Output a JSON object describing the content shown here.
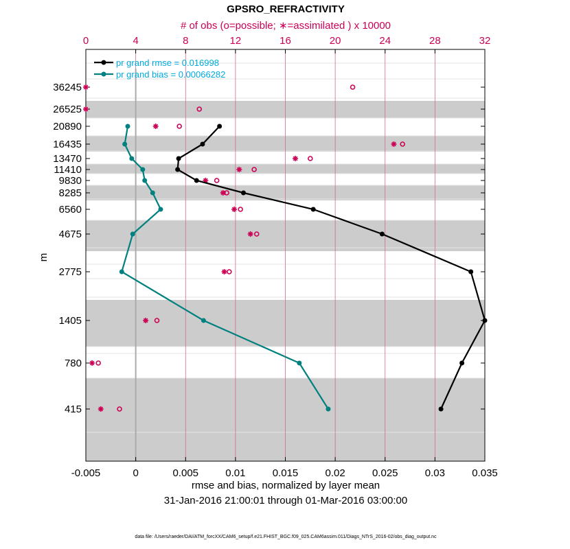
{
  "chart_data": {
    "type": "line",
    "title": "GPSRO_REFRACTIVITY",
    "top_axis_label": "# of obs (o=possible; ∗=assimilated ) x 10000",
    "top_ticks": [
      "0",
      "4",
      "8",
      "12",
      "16",
      "20",
      "24",
      "28",
      "32"
    ],
    "top_range": [
      0,
      32
    ],
    "xlabel": "rmse and bias, normalized by layer mean",
    "date_range": "31-Jan-2016 21:00:01 through 01-Mar-2016 03:00:00",
    "ylabel": "m",
    "xlim": [
      -0.005,
      0.035
    ],
    "x_ticks": [
      "-0.005",
      "0",
      "0.005",
      "0.01",
      "0.015",
      "0.02",
      "0.025",
      "0.03",
      "0.035"
    ],
    "y_levels": [
      "36245",
      "26525",
      "20890",
      "16435",
      "13470",
      "11410",
      "9830",
      "8285",
      "6560",
      "4675",
      "2775",
      "1405",
      "780",
      "415"
    ],
    "shaded_bands": [
      [
        1,
        1
      ],
      [
        3,
        3
      ],
      [
        5,
        5
      ],
      [
        7,
        7
      ],
      [
        9,
        9
      ],
      [
        11,
        11
      ],
      [
        13,
        13
      ]
    ],
    "legend": {
      "rmse_label": "pr grand rmse = 0.016998",
      "bias_label": "pr grand bias = 0.00066282"
    },
    "series": [
      {
        "name": "rmse",
        "color": "#000000",
        "level_index": [
          2,
          3,
          4,
          5,
          6,
          7,
          8,
          9,
          10,
          11,
          12,
          13
        ],
        "values": [
          0.0084,
          0.0067,
          0.0043,
          0.0042,
          0.0061,
          0.0108,
          0.0178,
          0.0247,
          0.0336,
          0.035,
          0.0327,
          0.0306
        ]
      },
      {
        "name": "bias",
        "color": "#00807f",
        "level_index": [
          2,
          3,
          4,
          5,
          6,
          7,
          8,
          9,
          10,
          11,
          12,
          13
        ],
        "values": [
          -0.0008,
          -0.0011,
          -0.0004,
          0.0007,
          0.0009,
          0.0017,
          0.0025,
          -0.0003,
          -0.0014,
          0.0068,
          0.0164,
          0.0193
        ]
      }
    ],
    "obs_possible": [
      {
        "level_index": 0,
        "count": 21.4
      },
      {
        "level_index": 1,
        "count": 9.1
      },
      {
        "level_index": 2,
        "count": 7.5
      },
      {
        "level_index": 3,
        "count": 25.4
      },
      {
        "level_index": 4,
        "count": 18.0
      },
      {
        "level_index": 5,
        "count": 13.5
      },
      {
        "level_index": 6,
        "count": 10.5
      },
      {
        "level_index": 7,
        "count": 11.3
      },
      {
        "level_index": 8,
        "count": 12.4
      },
      {
        "level_index": 9,
        "count": 13.7
      },
      {
        "level_index": 10,
        "count": 11.5
      },
      {
        "level_index": 11,
        "count": 5.7
      },
      {
        "level_index": 12,
        "count": 1.0
      },
      {
        "level_index": 13,
        "count": 2.7
      }
    ],
    "obs_assimilated": [
      {
        "level_index": 0,
        "count": 0.0
      },
      {
        "level_index": 1,
        "count": 0.0
      },
      {
        "level_index": 2,
        "count": 5.6
      },
      {
        "level_index": 3,
        "count": 24.7
      },
      {
        "level_index": 4,
        "count": 16.8
      },
      {
        "level_index": 5,
        "count": 12.3
      },
      {
        "level_index": 6,
        "count": 9.6
      },
      {
        "level_index": 7,
        "count": 11.0
      },
      {
        "level_index": 8,
        "count": 11.9
      },
      {
        "level_index": 9,
        "count": 13.2
      },
      {
        "level_index": 10,
        "count": 11.1
      },
      {
        "level_index": 11,
        "count": 4.8
      },
      {
        "level_index": 12,
        "count": 0.5
      },
      {
        "level_index": 13,
        "count": 1.2
      }
    ],
    "colors": {
      "rmse": "#000000",
      "bias": "#00807f",
      "obs": "#cc0055",
      "shade": "#cccccc",
      "grid": "#c86e8c",
      "legend_text": "#00aadd"
    }
  },
  "footer": {
    "data_file": "data file: /Users/raeder/DAI/ATM_forcXX/CAM6_setup/f.e21.FHIST_BGC.f09_025.CAM6assim.011/Diags_NTrS_2016-02/obs_diag_output.nc"
  }
}
